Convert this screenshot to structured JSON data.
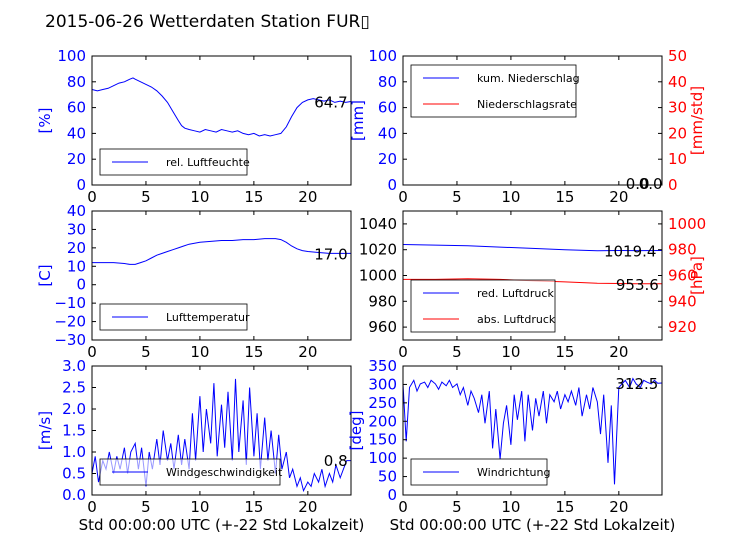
{
  "title": "2015-06-26 Wetterdaten Station FUR▯",
  "colors": {
    "primary": "#0000ff",
    "secondary": "#ff0000",
    "axis": "#000000"
  },
  "chart_data": [
    {
      "id": "humidity",
      "type": "line",
      "ylabel": "[%]",
      "xlim": [
        0,
        24
      ],
      "ylim": [
        0,
        100
      ],
      "yticks": [
        "0",
        "20",
        "40",
        "60",
        "80",
        "100"
      ],
      "xticks": [
        "0",
        "5",
        "10",
        "15",
        "20"
      ],
      "last_value": "64.7",
      "legend": {
        "position": "lower-left"
      },
      "series": [
        {
          "name": "rel. Luftfeuchte",
          "color": "#0000ff",
          "x": [
            0,
            0.5,
            1,
            1.5,
            2,
            2.5,
            3,
            3.5,
            3.8,
            4,
            4.5,
            5,
            5.5,
            6,
            6.5,
            7,
            7.5,
            8,
            8.3,
            8.6,
            9,
            9.5,
            10,
            10.5,
            11,
            11.5,
            12,
            12.5,
            13,
            13.5,
            14,
            14.5,
            15,
            15.5,
            16,
            16.5,
            17,
            17.5,
            18,
            18.5,
            19,
            19.5,
            20,
            20.5,
            21,
            21.5,
            22,
            22.5,
            23,
            23.5,
            24
          ],
          "values": [
            74,
            73,
            74,
            75,
            77,
            79,
            80,
            82,
            83,
            82,
            80,
            78,
            76,
            73,
            69,
            64,
            57,
            50,
            46,
            44,
            43,
            42,
            41,
            43,
            42,
            41,
            43,
            42,
            41,
            42,
            40,
            39,
            40,
            38,
            39,
            38,
            39,
            40,
            45,
            53,
            60,
            64,
            66,
            67,
            66,
            65,
            66,
            64,
            65,
            64,
            64.7
          ]
        }
      ]
    },
    {
      "id": "precipitation",
      "type": "line",
      "ylabel": "[mm]",
      "ylabel_right": "[mm/std]",
      "xlim": [
        0,
        24
      ],
      "ylim": [
        0,
        100
      ],
      "ylim_right": [
        0,
        50
      ],
      "yticks": [
        "0",
        "20",
        "40",
        "60",
        "80",
        "100"
      ],
      "yticks_right": [
        "0",
        "10",
        "20",
        "30",
        "40",
        "50"
      ],
      "xticks": [
        "0",
        "5",
        "10",
        "15",
        "20"
      ],
      "last_value": "0.0",
      "last_value_2": "0.0",
      "legend": {
        "position": "upper-left"
      },
      "series": [
        {
          "name": "kum. Niederschlag",
          "color": "#0000ff",
          "axis": "left",
          "x": [
            0,
            24
          ],
          "values": [
            0,
            0
          ]
        },
        {
          "name": "Niederschlagsrate",
          "color": "#ff0000",
          "axis": "right",
          "x": [
            0,
            24
          ],
          "values": [
            0,
            0
          ]
        }
      ]
    },
    {
      "id": "temperature",
      "type": "line",
      "ylabel": "[C]",
      "xlim": [
        0,
        24
      ],
      "ylim": [
        -30,
        40
      ],
      "yticks": [
        "−30",
        "−20",
        "−10",
        "0",
        "10",
        "20",
        "30",
        "40"
      ],
      "xticks": [
        "0",
        "5",
        "10",
        "15",
        "20"
      ],
      "last_value": "17.0",
      "legend": {
        "position": "lower-left"
      },
      "series": [
        {
          "name": "Lufttemperatur",
          "color": "#0000ff",
          "x": [
            0,
            1,
            2,
            3,
            3.5,
            4,
            4.5,
            5,
            5.5,
            6,
            6.5,
            7,
            7.5,
            8,
            8.5,
            9,
            9.5,
            10,
            11,
            12,
            13,
            14,
            15,
            16,
            17,
            17.5,
            18,
            18.5,
            19,
            19.5,
            20,
            21,
            22,
            23,
            24
          ],
          "values": [
            12,
            12,
            12,
            11.5,
            11,
            11,
            12,
            13,
            14.5,
            16,
            17,
            18,
            19,
            20,
            21,
            22,
            22.5,
            23,
            23.5,
            24,
            24,
            24.5,
            24.5,
            25,
            25,
            24.5,
            23,
            21,
            19.5,
            18.5,
            18,
            17.5,
            17,
            17,
            17
          ]
        }
      ]
    },
    {
      "id": "pressure",
      "type": "line",
      "ylabel_right": "[hPa]",
      "xlim": [
        0,
        24
      ],
      "ylim": [
        950,
        1050
      ],
      "ylim_right": [
        910,
        1010
      ],
      "yticks": [
        "960",
        "980",
        "1000",
        "1020",
        "1040"
      ],
      "yticks_right": [
        "920",
        "940",
        "960",
        "980",
        "1000"
      ],
      "xticks": [
        "0",
        "5",
        "10",
        "15",
        "20"
      ],
      "last_value": "1019.4",
      "last_value_2": "953.6",
      "legend": {
        "position": "lower-left"
      },
      "series": [
        {
          "name": "red. Luftdruck",
          "color": "#0000ff",
          "axis": "left",
          "x": [
            0,
            3,
            6,
            9,
            12,
            15,
            18,
            20,
            22,
            24
          ],
          "values": [
            1024,
            1023.6,
            1023,
            1022,
            1021,
            1020,
            1019.2,
            1019.4,
            1019.3,
            1019.4
          ]
        },
        {
          "name": "abs. Luftdruck",
          "color": "#ff0000",
          "axis": "right",
          "x": [
            0,
            3,
            6,
            9,
            12,
            15,
            18,
            20,
            22,
            24
          ],
          "values": [
            957,
            957,
            957.5,
            957,
            956,
            955,
            954,
            953.8,
            953.6,
            953.6
          ]
        }
      ]
    },
    {
      "id": "wind_speed",
      "type": "line",
      "ylabel": "[m/s]",
      "xlim": [
        0,
        24
      ],
      "ylim": [
        0,
        3
      ],
      "yticks": [
        "0.0",
        "0.5",
        "1.0",
        "1.5",
        "2.0",
        "2.5",
        "3.0"
      ],
      "xticks": [
        "0",
        "5",
        "10",
        "15",
        "20"
      ],
      "xlabel": "Std 00:00:00 UTC (+-22 Std Lokalzeit)",
      "last_value": "0.8",
      "legend": {
        "position": "lower-center"
      },
      "series": [
        {
          "name": "Windgeschwindigkeit",
          "color": "#0000ff",
          "x": [
            0,
            0.3,
            0.6,
            1,
            1.3,
            1.6,
            2,
            2.3,
            2.6,
            3,
            3.3,
            3.6,
            4,
            4.3,
            4.6,
            5,
            5.3,
            5.6,
            6,
            6.3,
            6.6,
            7,
            7.3,
            7.6,
            8,
            8.3,
            8.6,
            9,
            9.3,
            9.6,
            10,
            10.3,
            10.6,
            11,
            11.3,
            11.6,
            12,
            12.3,
            12.6,
            13,
            13.3,
            13.6,
            14,
            14.3,
            14.6,
            15,
            15.3,
            15.6,
            16,
            16.3,
            16.6,
            17,
            17.3,
            17.6,
            18,
            18.3,
            18.6,
            19,
            19.3,
            19.6,
            20,
            20.3,
            20.6,
            21,
            21.3,
            21.6,
            22,
            22.3,
            22.6,
            23,
            23.3,
            23.6,
            24
          ],
          "values": [
            0.5,
            0.9,
            0.3,
            0.8,
            0.6,
            1.0,
            0.5,
            0.9,
            0.6,
            1.1,
            0.5,
            1.0,
            1.2,
            0.6,
            1.1,
            0.2,
            1.0,
            0.6,
            1.3,
            0.7,
            1.5,
            0.8,
            1.2,
            0.6,
            1.4,
            0.7,
            1.3,
            0.6,
            1.9,
            0.8,
            2.3,
            1.0,
            2.0,
            1.2,
            2.6,
            0.9,
            2.1,
            1.1,
            2.4,
            0.8,
            2.7,
            1.0,
            2.2,
            0.7,
            2.5,
            0.9,
            1.9,
            0.6,
            1.8,
            0.8,
            1.5,
            0.5,
            1.4,
            0.6,
            1.0,
            0.4,
            0.6,
            0.2,
            0.4,
            0.1,
            0.3,
            0.2,
            0.5,
            0.3,
            0.6,
            0.2,
            0.5,
            0.3,
            0.7,
            0.4,
            0.6,
            0.8,
            0.8
          ]
        }
      ]
    },
    {
      "id": "wind_direction",
      "type": "line",
      "ylabel": "[deg]",
      "xlim": [
        0,
        24
      ],
      "ylim": [
        0,
        360
      ],
      "yticks": [
        "0",
        "50",
        "100",
        "150",
        "200",
        "250",
        "300",
        "350"
      ],
      "xticks": [
        "0",
        "5",
        "10",
        "15",
        "20"
      ],
      "xlabel": "Std 00:00:00 UTC (+-22 Std Lokalzeit)",
      "last_value": "312.5",
      "legend": {
        "position": "lower-left"
      },
      "series": [
        {
          "name": "Windrichtung",
          "color": "#0000ff",
          "x": [
            0,
            0.3,
            0.6,
            1,
            1.3,
            1.6,
            2,
            2.3,
            2.6,
            3,
            3.3,
            3.6,
            4,
            4.3,
            4.6,
            5,
            5.3,
            5.6,
            6,
            6.3,
            6.6,
            7,
            7.3,
            7.6,
            8,
            8.3,
            8.6,
            9,
            9.3,
            9.6,
            10,
            10.3,
            10.6,
            11,
            11.3,
            11.6,
            12,
            12.3,
            12.6,
            13,
            13.3,
            13.6,
            14,
            14.3,
            14.6,
            15,
            15.3,
            15.6,
            16,
            16.3,
            16.6,
            17,
            17.3,
            17.6,
            18,
            18.3,
            18.6,
            19,
            19.3,
            19.6,
            20,
            20.3,
            20.6,
            21,
            21.3,
            21.6,
            22,
            22.3,
            22.6,
            23,
            23.3,
            23.6,
            24
          ],
          "values": [
            310,
            150,
            300,
            320,
            290,
            310,
            315,
            300,
            320,
            310,
            295,
            315,
            305,
            320,
            300,
            310,
            280,
            300,
            250,
            290,
            270,
            230,
            280,
            200,
            290,
            130,
            240,
            100,
            200,
            250,
            140,
            280,
            210,
            290,
            150,
            280,
            180,
            270,
            220,
            290,
            200,
            280,
            260,
            290,
            240,
            280,
            260,
            290,
            250,
            300,
            220,
            280,
            240,
            300,
            260,
            170,
            280,
            90,
            250,
            30,
            300,
            310,
            320,
            300,
            325,
            310,
            300,
            320,
            315,
            310,
            320,
            312,
            312.5
          ]
        }
      ]
    }
  ]
}
